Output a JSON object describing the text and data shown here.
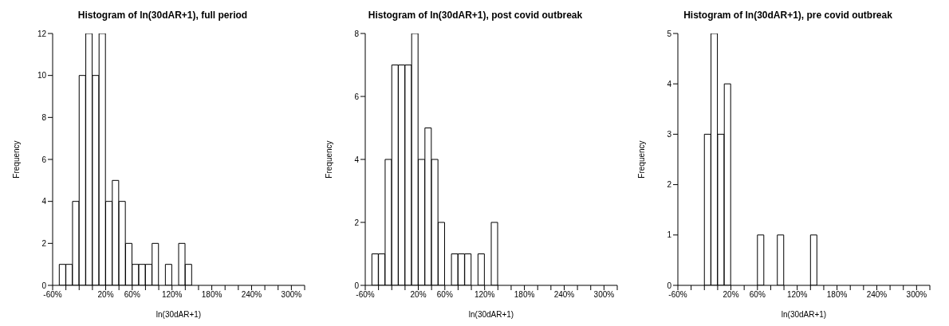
{
  "chart_data": [
    {
      "type": "histogram",
      "title": "Histogram of ln(30dAR+1), full period",
      "xlabel": "ln(30dAR+1)",
      "ylabel": "Frequency",
      "color": "#ffffff",
      "bins": [
        -50,
        -40,
        -30,
        -20,
        -10,
        0,
        10,
        20,
        30,
        40,
        50,
        60,
        70,
        80,
        90,
        100,
        110,
        120,
        130,
        140,
        150
      ],
      "values": [
        1,
        1,
        4,
        10,
        12,
        10,
        12,
        4,
        5,
        4,
        2,
        1,
        1,
        1,
        2,
        0,
        1,
        0,
        2,
        1
      ],
      "xlim": [
        -60,
        320
      ],
      "xticks": [
        {
          "value": -60,
          "label": "-60%"
        },
        {
          "value": -40,
          "label": null
        },
        {
          "value": -20,
          "label": null
        },
        {
          "value": 0,
          "label": null
        },
        {
          "value": 20,
          "label": "20%"
        },
        {
          "value": 40,
          "label": null
        },
        {
          "value": 60,
          "label": "60%"
        },
        {
          "value": 80,
          "label": null
        },
        {
          "value": 100,
          "label": null
        },
        {
          "value": 120,
          "label": "120%"
        },
        {
          "value": 140,
          "label": null
        },
        {
          "value": 160,
          "label": null
        },
        {
          "value": 180,
          "label": "180%"
        },
        {
          "value": 200,
          "label": null
        },
        {
          "value": 220,
          "label": null
        },
        {
          "value": 240,
          "label": "240%"
        },
        {
          "value": 260,
          "label": null
        },
        {
          "value": 280,
          "label": null
        },
        {
          "value": 300,
          "label": "300%"
        },
        {
          "value": 320,
          "label": null
        }
      ],
      "ylim": [
        0,
        12
      ],
      "yticks": [
        0,
        2,
        4,
        6,
        8,
        10,
        12
      ]
    },
    {
      "type": "histogram",
      "title": "Histogram of ln(30dAR+1), post covid outbreak",
      "xlabel": "ln(30dAR+1)",
      "ylabel": "Frequency",
      "color": "#ffffff",
      "bins": [
        -50,
        -40,
        -30,
        -20,
        -10,
        0,
        10,
        20,
        30,
        40,
        50,
        60,
        70,
        80,
        90,
        100,
        110,
        120,
        130,
        140
      ],
      "values": [
        1,
        1,
        4,
        7,
        7,
        7,
        8,
        4,
        5,
        4,
        2,
        0,
        1,
        1,
        1,
        0,
        1,
        0,
        2
      ],
      "xlim": [
        -60,
        320
      ],
      "xticks": [
        {
          "value": -60,
          "label": "-60%"
        },
        {
          "value": -40,
          "label": null
        },
        {
          "value": -20,
          "label": null
        },
        {
          "value": 0,
          "label": null
        },
        {
          "value": 20,
          "label": "20%"
        },
        {
          "value": 40,
          "label": null
        },
        {
          "value": 60,
          "label": "60%"
        },
        {
          "value": 80,
          "label": null
        },
        {
          "value": 100,
          "label": null
        },
        {
          "value": 120,
          "label": "120%"
        },
        {
          "value": 140,
          "label": null
        },
        {
          "value": 160,
          "label": null
        },
        {
          "value": 180,
          "label": "180%"
        },
        {
          "value": 200,
          "label": null
        },
        {
          "value": 220,
          "label": null
        },
        {
          "value": 240,
          "label": "240%"
        },
        {
          "value": 260,
          "label": null
        },
        {
          "value": 280,
          "label": null
        },
        {
          "value": 300,
          "label": "300%"
        },
        {
          "value": 320,
          "label": null
        }
      ],
      "ylim": [
        0,
        8
      ],
      "yticks": [
        0,
        2,
        4,
        6,
        8
      ]
    },
    {
      "type": "histogram",
      "title": "Histogram of ln(30dAR+1), pre covid outbreak",
      "xlabel": "ln(30dAR+1)",
      "ylabel": "Frequency",
      "color": "#ffffff",
      "bins": [
        -20,
        -10,
        0,
        10,
        20,
        30,
        40,
        50,
        60,
        70,
        80,
        90,
        100,
        110,
        120,
        130,
        140,
        150
      ],
      "values": [
        3,
        5,
        3,
        4,
        0,
        0,
        0,
        0,
        1,
        0,
        0,
        1,
        0,
        0,
        0,
        0,
        1
      ],
      "xlim": [
        -60,
        320
      ],
      "xticks": [
        {
          "value": -60,
          "label": "-60%"
        },
        {
          "value": -40,
          "label": null
        },
        {
          "value": -20,
          "label": null
        },
        {
          "value": 0,
          "label": null
        },
        {
          "value": 20,
          "label": "20%"
        },
        {
          "value": 40,
          "label": null
        },
        {
          "value": 60,
          "label": "60%"
        },
        {
          "value": 80,
          "label": null
        },
        {
          "value": 100,
          "label": null
        },
        {
          "value": 120,
          "label": "120%"
        },
        {
          "value": 140,
          "label": null
        },
        {
          "value": 160,
          "label": null
        },
        {
          "value": 180,
          "label": "180%"
        },
        {
          "value": 200,
          "label": null
        },
        {
          "value": 220,
          "label": null
        },
        {
          "value": 240,
          "label": "240%"
        },
        {
          "value": 260,
          "label": null
        },
        {
          "value": 280,
          "label": null
        },
        {
          "value": 300,
          "label": "300%"
        },
        {
          "value": 320,
          "label": null
        }
      ],
      "ylim": [
        0,
        5
      ],
      "yticks": [
        0,
        1,
        2,
        3,
        4,
        5
      ]
    }
  ]
}
